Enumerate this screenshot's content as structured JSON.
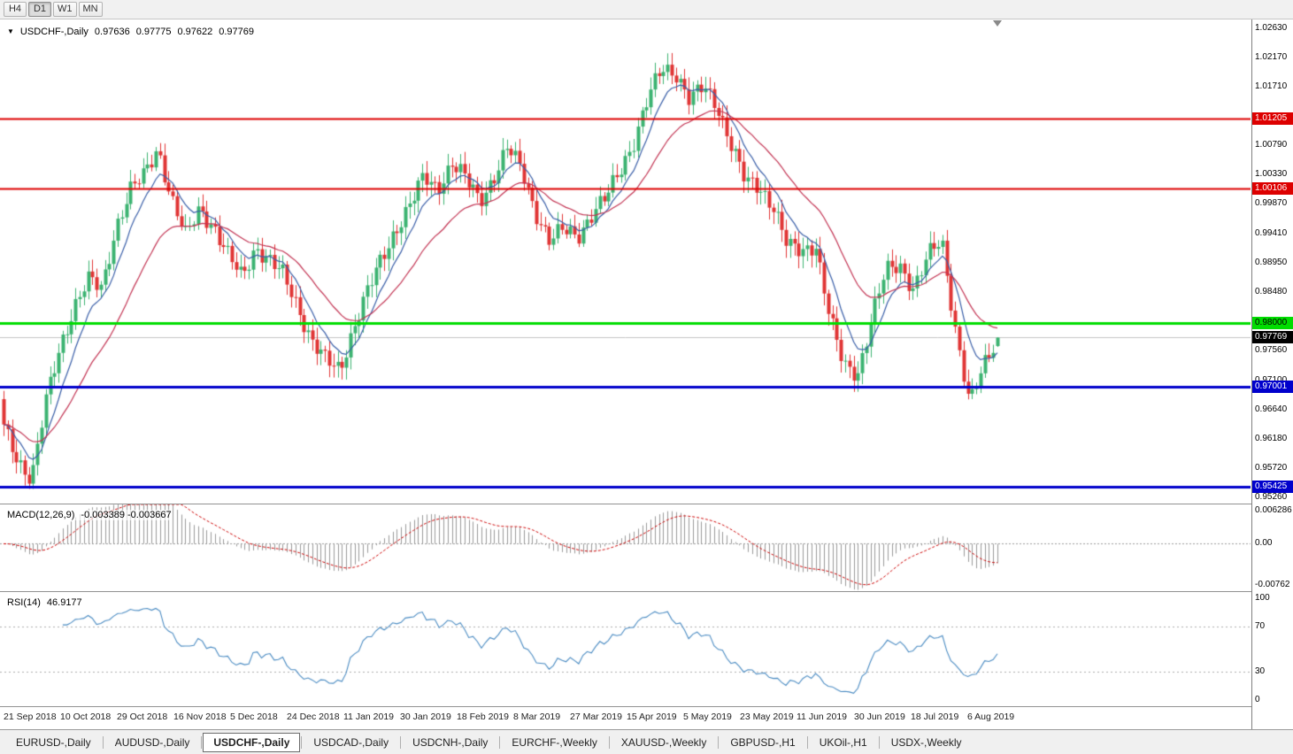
{
  "toolbar": {
    "timeframes": [
      {
        "label": "H4",
        "active": false
      },
      {
        "label": "D1",
        "active": true
      },
      {
        "label": "W1",
        "active": false
      },
      {
        "label": "MN",
        "active": false
      }
    ]
  },
  "chart": {
    "title": {
      "symbol": "USDCHF-,Daily",
      "open": "0.97636",
      "high": "0.97775",
      "low": "0.97622",
      "close": "0.97769"
    },
    "icons": {
      "collapse": "▼"
    },
    "colors": {
      "up": "#3cb371",
      "down": "#e03535",
      "ma_fast": "#3a5fa8",
      "ma_slow": "#c23352",
      "macd_bar": "#9a9a9a",
      "macd_signal": "#cc0000",
      "rsi_line": "#4a8bc2",
      "current_price_line": "#c4c4c4"
    },
    "price_axis": {
      "ticks": [
        "1.02630",
        "1.02170",
        "1.01710",
        "1.00790",
        "1.00330",
        "0.99870",
        "0.99410",
        "0.98950",
        "0.98480",
        "0.97560",
        "0.97100",
        "0.96640",
        "0.96180",
        "0.95720",
        "0.95260"
      ],
      "badges": [
        {
          "value": "1.01205",
          "bg": "#dd0000",
          "fg": "#ffffff"
        },
        {
          "value": "1.00106",
          "bg": "#dd0000",
          "fg": "#ffffff"
        },
        {
          "value": "0.98000",
          "bg": "#00dd00",
          "fg": "#000000"
        },
        {
          "value": "0.97769",
          "bg": "#000000",
          "fg": "#ffffff"
        },
        {
          "value": "0.97001",
          "bg": "#0000cc",
          "fg": "#ffffff"
        },
        {
          "value": "0.95425",
          "bg": "#0000cc",
          "fg": "#ffffff"
        }
      ]
    },
    "hlines": [
      {
        "value": 1.01205,
        "color": "#dd0000",
        "width": 2
      },
      {
        "value": 1.00106,
        "color": "#dd0000",
        "width": 2
      },
      {
        "value": 0.98,
        "color": "#00dd00",
        "width": 3
      },
      {
        "value": 0.97001,
        "color": "#0000cc",
        "width": 3
      },
      {
        "value": 0.95425,
        "color": "#0000cc",
        "width": 3
      }
    ],
    "current_price": 0.97769
  },
  "chart_data": {
    "type": "candlestick",
    "title": "USDCHF-,Daily",
    "symbol": "USDCHF-",
    "timeframe": "Daily",
    "x_range": [
      "21 Sep 2018",
      "19 Aug 2019"
    ],
    "y_range": [
      0.9516,
      1.0277
    ],
    "num_candles": 236,
    "current_ohlc": {
      "open": 0.97636,
      "high": 0.97775,
      "low": 0.97622,
      "close": 0.97769
    },
    "close_anchors": [
      0.9635,
      0.9585,
      0.9555,
      0.9675,
      0.976,
      0.9825,
      0.9868,
      0.9852,
      0.995,
      1.0008,
      1.003,
      1.0075,
      0.9995,
      0.9935,
      0.998,
      0.9952,
      0.9906,
      0.9872,
      0.992,
      0.9897,
      0.9874,
      0.9826,
      0.9772,
      0.974,
      0.9726,
      0.9795,
      0.985,
      0.99,
      0.9948,
      0.9985,
      1.0028,
      1.0012,
      1.0052,
      1.0026,
      0.9992,
      1.003,
      1.0075,
      1.004,
      0.9975,
      0.9928,
      0.9946,
      0.9938,
      0.997,
      0.9995,
      1.004,
      1.0085,
      1.015,
      1.02,
      1.0195,
      1.015,
      1.017,
      1.014,
      1.008,
      1.002,
      1.0012,
      0.9985,
      0.992,
      0.991,
      0.9925,
      0.981,
      0.973,
      0.972,
      0.981,
      0.988,
      0.989,
      0.9855,
      0.9905,
      0.9928,
      0.979,
      0.9672,
      0.973,
      0.9777
    ],
    "key_levels": [
      1.01205,
      1.00106,
      0.98,
      0.97001,
      0.95425
    ],
    "overlays": [
      {
        "name": "fast-ma",
        "period": 8,
        "color": "#3a5fa8"
      },
      {
        "name": "slow-ma",
        "period": 24,
        "color": "#c23352"
      }
    ],
    "indicators": [
      {
        "name": "MACD",
        "params": "12,26,9",
        "current": [
          -0.003389,
          -0.003667
        ]
      },
      {
        "name": "RSI",
        "params": "14",
        "current": 46.9177
      }
    ]
  },
  "macd": {
    "label": "MACD(12,26,9)",
    "values": "-0.003389 -0.003667",
    "axis": [
      {
        "text": "0.006286",
        "value": 0.006286
      },
      {
        "text": "0.00",
        "value": 0
      },
      {
        "text": "-0.00762",
        "value": -0.00762
      }
    ],
    "range": {
      "max": 0.0068,
      "min": -0.0082
    }
  },
  "rsi": {
    "label": "RSI(14)",
    "value": "46.9177",
    "axis": [
      {
        "text": "100",
        "value": 100
      },
      {
        "text": "70",
        "value": 70
      },
      {
        "text": "30",
        "value": 30
      },
      {
        "text": "0",
        "value": 0
      }
    ],
    "levels": [
      70,
      30
    ],
    "range": {
      "max": 100,
      "min": 0
    }
  },
  "date_axis": [
    "21 Sep 2018",
    "10 Oct 2018",
    "29 Oct 2018",
    "16 Nov 2018",
    "5 Dec 2018",
    "24 Dec 2018",
    "11 Jan 2019",
    "30 Jan 2019",
    "18 Feb 2019",
    "8 Mar 2019",
    "27 Mar 2019",
    "15 Apr 2019",
    "5 May 2019",
    "23 May 2019",
    "11 Jun 2019",
    "30 Jun 2019",
    "18 Jul 2019",
    "6 Aug 2019"
  ],
  "tabs": [
    {
      "label": "EURUSD-,Daily",
      "active": false
    },
    {
      "label": "AUDUSD-,Daily",
      "active": false
    },
    {
      "label": "USDCHF-,Daily",
      "active": true
    },
    {
      "label": "USDCAD-,Daily",
      "active": false
    },
    {
      "label": "USDCNH-,Daily",
      "active": false
    },
    {
      "label": "EURCHF-,Weekly",
      "active": false
    },
    {
      "label": "XAUUSD-,Weekly",
      "active": false
    },
    {
      "label": "GBPUSD-,H1",
      "active": false
    },
    {
      "label": "UKOil-,H1",
      "active": false
    },
    {
      "label": "USDX-,Weekly",
      "active": false
    }
  ]
}
